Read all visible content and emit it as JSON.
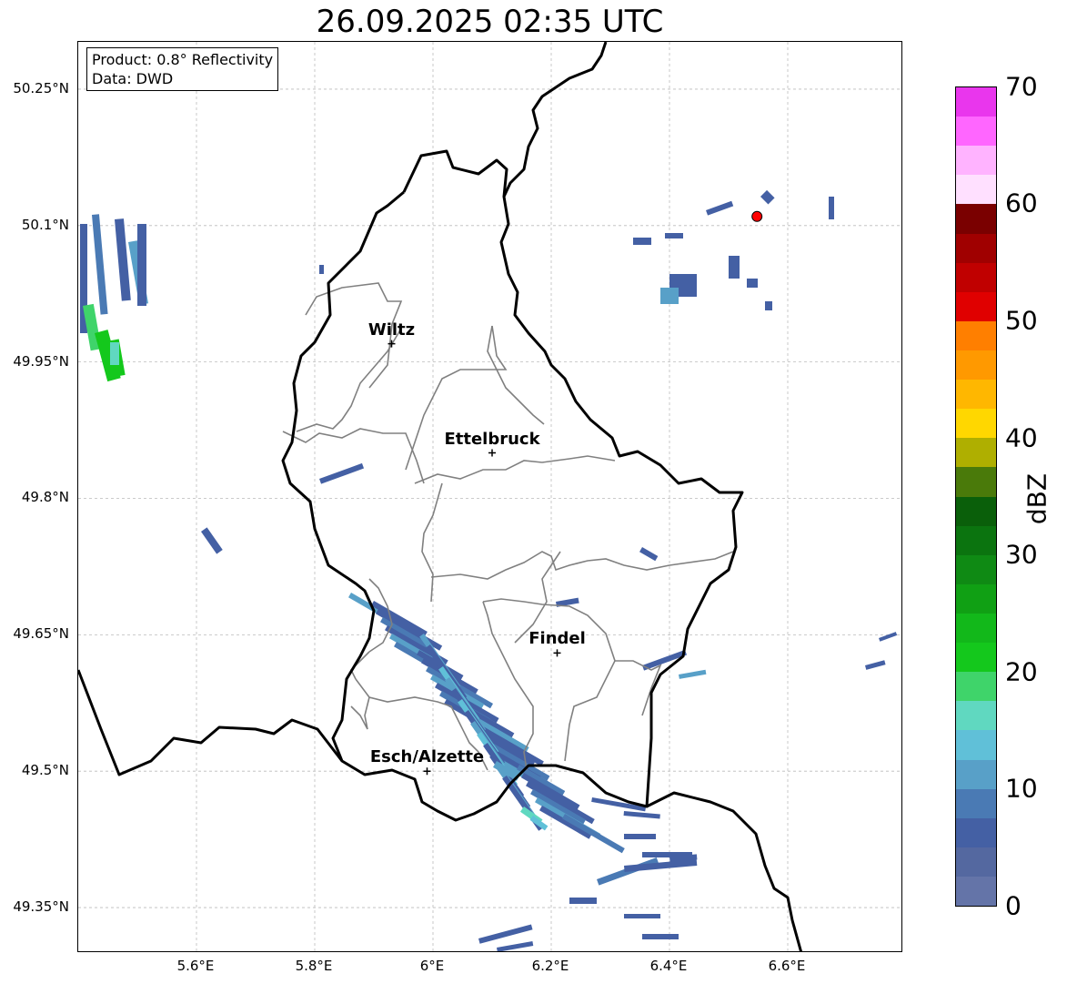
{
  "title": "26.09.2025 02:35 UTC",
  "info": {
    "product": "Product: 0.8° Reflectivity",
    "data": "Data: DWD"
  },
  "axes": {
    "lon_ticks": [
      "5.6°E",
      "5.8°E",
      "6°E",
      "6.2°E",
      "6.4°E",
      "6.6°E"
    ],
    "lat_ticks": [
      "50.25°N",
      "50.1°N",
      "49.95°N",
      "49.8°N",
      "49.65°N",
      "49.5°N",
      "49.35°N"
    ]
  },
  "cities": [
    {
      "name": "Wiltz",
      "lon": 5.93,
      "lat": 49.97
    },
    {
      "name": "Ettelbruck",
      "lon": 6.1,
      "lat": 49.85
    },
    {
      "name": "Findel",
      "lon": 6.21,
      "lat": 49.63
    },
    {
      "name": "Esch/Alzette",
      "lon": 5.99,
      "lat": 49.5
    }
  ],
  "radar_site": {
    "lon": 6.548,
    "lat": 50.11,
    "color": "#ff0000"
  },
  "colorbar": {
    "label": "dBZ",
    "ticks": [
      "0",
      "10",
      "20",
      "30",
      "40",
      "50",
      "60",
      "70"
    ],
    "colors_top_to_bottom": [
      "#e936ed",
      "#ff66ff",
      "#ffb3ff",
      "#ffe0ff",
      "#7a0000",
      "#a00000",
      "#c00000",
      "#e00000",
      "#ff7f00",
      "#ff9900",
      "#ffb700",
      "#ffd700",
      "#afaf00",
      "#4a7a0a",
      "#0a5f0a",
      "#0b740f",
      "#0f8a14",
      "#10a014",
      "#12b81a",
      "#14c81c",
      "#3fd46a",
      "#60d8c0",
      "#60c0d8",
      "#58a0c8",
      "#4a7ab4",
      "#4460a4",
      "#5468a0",
      "#6474a8"
    ]
  }
}
